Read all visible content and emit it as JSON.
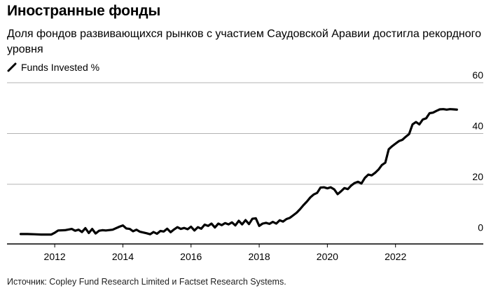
{
  "header": {
    "title": "Иностранные фонды",
    "subtitle": "Доля фондов развивающихся рынков с участием Саудовской Аравии достигла рекордного уровня"
  },
  "legend": {
    "label": "Funds Invested %",
    "icon": "diagonal-line-icon"
  },
  "footer": {
    "source": "Источник: Copley Fund Research Limited и Factset Research Systems."
  },
  "colors": {
    "line": "#000000",
    "grid": "#b3b3b3",
    "axis": "#000000"
  },
  "chart_data": {
    "type": "line",
    "title": "Иностранные фонды",
    "subtitle": "Доля фондов развивающихся рынков с участием Саудовской Аравии достигла рекордного уровня",
    "xlabel": "",
    "ylabel": "",
    "xlim": [
      2010.6,
      2024.0
    ],
    "ylim": [
      -3.5,
      60
    ],
    "x_ticks": [
      2012,
      2014,
      2016,
      2018,
      2020,
      2022
    ],
    "y_ticks": [
      0,
      20,
      40,
      60
    ],
    "grid": true,
    "legend_position": "top-left",
    "series": [
      {
        "name": "Funds Invested %",
        "x": [
          2011.0,
          2011.2,
          2011.4,
          2011.6,
          2011.8,
          2011.9,
          2012.0,
          2012.1,
          2012.3,
          2012.5,
          2012.6,
          2012.7,
          2012.8,
          2012.9,
          2013.0,
          2013.1,
          2013.2,
          2013.3,
          2013.4,
          2013.5,
          2013.7,
          2013.9,
          2014.0,
          2014.1,
          2014.2,
          2014.3,
          2014.4,
          2014.5,
          2014.6,
          2014.7,
          2014.8,
          2014.9,
          2015.0,
          2015.1,
          2015.2,
          2015.3,
          2015.4,
          2015.5,
          2015.6,
          2015.7,
          2015.8,
          2015.9,
          2016.0,
          2016.1,
          2016.2,
          2016.3,
          2016.4,
          2016.5,
          2016.6,
          2016.7,
          2016.8,
          2016.9,
          2017.0,
          2017.1,
          2017.2,
          2017.3,
          2017.4,
          2017.5,
          2017.6,
          2017.7,
          2017.8,
          2017.9,
          2018.0,
          2018.1,
          2018.2,
          2018.3,
          2018.4,
          2018.5,
          2018.6,
          2018.7,
          2018.8,
          2018.9,
          2019.0,
          2019.1,
          2019.2,
          2019.3,
          2019.4,
          2019.5,
          2019.6,
          2019.7,
          2019.8,
          2019.9,
          2020.0,
          2020.1,
          2020.2,
          2020.3,
          2020.4,
          2020.5,
          2020.6,
          2020.7,
          2020.8,
          2020.9,
          2021.0,
          2021.1,
          2021.2,
          2021.3,
          2021.4,
          2021.5,
          2021.6,
          2021.7,
          2021.8,
          2021.9,
          2022.0,
          2022.1,
          2022.2,
          2022.3,
          2022.4,
          2022.5,
          2022.6,
          2022.7,
          2022.8,
          2022.9,
          2023.0,
          2023.1,
          2023.2,
          2023.3,
          2023.4,
          2023.5,
          2023.6,
          2023.7,
          2023.8
        ],
        "values": [
          0.4,
          0.4,
          0.3,
          0.2,
          0.2,
          0.2,
          0.9,
          1.8,
          1.9,
          2.4,
          1.7,
          2.1,
          1.2,
          2.7,
          0.8,
          2.4,
          0.6,
          1.7,
          1.9,
          1.8,
          2.1,
          3.3,
          3.8,
          2.6,
          2.4,
          1.5,
          2.1,
          1.3,
          1.0,
          0.7,
          0.3,
          1.2,
          0.5,
          1.6,
          1.4,
          2.5,
          1.1,
          2.2,
          3.1,
          2.4,
          2.8,
          2.3,
          3.3,
          1.8,
          3.1,
          2.5,
          4.1,
          3.6,
          4.5,
          3.0,
          4.5,
          3.9,
          4.7,
          4.2,
          5.0,
          3.8,
          5.6,
          4.2,
          5.9,
          4.3,
          6.4,
          6.6,
          3.6,
          4.5,
          4.8,
          4.4,
          5.2,
          4.5,
          5.8,
          5.3,
          6.3,
          6.8,
          7.8,
          8.8,
          10.2,
          11.8,
          13.2,
          14.8,
          16.0,
          16.6,
          18.7,
          18.8,
          18.4,
          18.8,
          18.0,
          16.1,
          17.2,
          18.5,
          18.1,
          19.5,
          20.5,
          21.0,
          20.3,
          22.5,
          23.8,
          23.5,
          24.5,
          25.8,
          27.6,
          28.5,
          33.8,
          35.0,
          36.0,
          37.0,
          37.5,
          38.7,
          39.8,
          43.6,
          44.5,
          43.6,
          45.5,
          46.0,
          48.0,
          48.2,
          48.9,
          49.5,
          49.6,
          49.4,
          49.6,
          49.5,
          49.4
        ]
      }
    ]
  }
}
